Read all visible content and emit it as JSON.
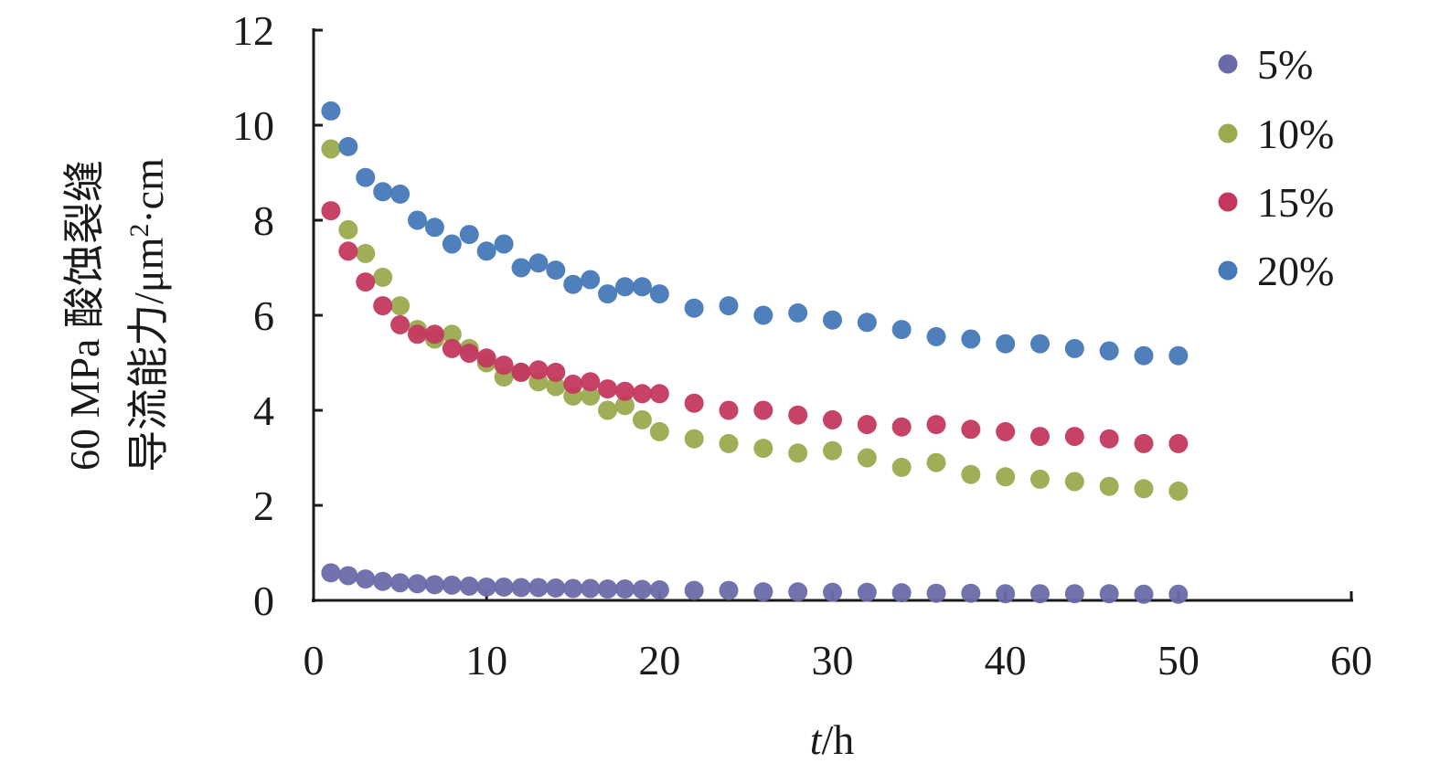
{
  "chart_data": {
    "type": "scatter",
    "xlabel_italic": "t",
    "xlabel_unit": "/h",
    "ylabel_line1": "60 MPa 酸蚀裂缝",
    "ylabel_line2_prefix": "导流能力/μm",
    "ylabel_line2_sup": "2",
    "ylabel_line2_suffix": "·cm",
    "xlim": [
      0,
      60
    ],
    "ylim": [
      0,
      12
    ],
    "xticks": [
      0,
      10,
      20,
      30,
      40,
      50,
      60
    ],
    "yticks": [
      0,
      2,
      4,
      6,
      8,
      10,
      12
    ],
    "x_tick_labels": [
      "0",
      "10",
      "20",
      "30",
      "40",
      "50",
      "60"
    ],
    "y_tick_labels": [
      "0",
      "2",
      "4",
      "6",
      "8",
      "10",
      "12"
    ],
    "grid": false,
    "legend_position": "top-right",
    "series": [
      {
        "name": "5%",
        "color": "#6a6aa8",
        "x": [
          1,
          2,
          3,
          4,
          5,
          6,
          7,
          8,
          9,
          10,
          11,
          12,
          13,
          14,
          15,
          16,
          17,
          18,
          19,
          20,
          22,
          24,
          26,
          28,
          30,
          32,
          34,
          36,
          38,
          40,
          42,
          44,
          46,
          48,
          50
        ],
        "y": [
          0.58,
          0.52,
          0.45,
          0.4,
          0.37,
          0.35,
          0.33,
          0.32,
          0.3,
          0.28,
          0.28,
          0.27,
          0.27,
          0.26,
          0.25,
          0.25,
          0.24,
          0.24,
          0.23,
          0.22,
          0.21,
          0.21,
          0.18,
          0.18,
          0.17,
          0.17,
          0.16,
          0.15,
          0.15,
          0.14,
          0.14,
          0.14,
          0.14,
          0.13,
          0.13
        ]
      },
      {
        "name": "10%",
        "color": "#9aaa4e",
        "x": [
          1,
          2,
          3,
          4,
          5,
          6,
          7,
          8,
          9,
          10,
          11,
          12,
          13,
          14,
          15,
          16,
          17,
          18,
          19,
          20,
          22,
          24,
          26,
          28,
          30,
          32,
          34,
          36,
          38,
          40,
          42,
          44,
          46,
          48,
          50
        ],
        "y": [
          9.5,
          7.8,
          7.3,
          6.8,
          6.2,
          5.7,
          5.5,
          5.6,
          5.3,
          5.0,
          4.7,
          4.8,
          4.6,
          4.5,
          4.3,
          4.3,
          4.0,
          4.1,
          3.8,
          3.55,
          3.4,
          3.3,
          3.2,
          3.1,
          3.15,
          3.0,
          2.8,
          2.9,
          2.65,
          2.6,
          2.55,
          2.5,
          2.4,
          2.35,
          2.3
        ]
      },
      {
        "name": "15%",
        "color": "#c4385f",
        "x": [
          1,
          2,
          3,
          4,
          5,
          6,
          7,
          8,
          9,
          10,
          11,
          12,
          13,
          14,
          15,
          16,
          17,
          18,
          19,
          20,
          22,
          24,
          26,
          28,
          30,
          32,
          34,
          36,
          38,
          40,
          42,
          44,
          46,
          48,
          50
        ],
        "y": [
          8.2,
          7.35,
          6.7,
          6.2,
          5.8,
          5.6,
          5.6,
          5.3,
          5.2,
          5.1,
          4.95,
          4.8,
          4.85,
          4.8,
          4.55,
          4.6,
          4.45,
          4.4,
          4.35,
          4.35,
          4.15,
          4.0,
          4.0,
          3.9,
          3.8,
          3.7,
          3.65,
          3.7,
          3.6,
          3.55,
          3.45,
          3.45,
          3.4,
          3.3,
          3.3
        ]
      },
      {
        "name": "20%",
        "color": "#4779b8",
        "x": [
          1,
          2,
          3,
          4,
          5,
          6,
          7,
          8,
          9,
          10,
          11,
          12,
          13,
          14,
          15,
          16,
          17,
          18,
          19,
          20,
          22,
          24,
          26,
          28,
          30,
          32,
          34,
          36,
          38,
          40,
          42,
          44,
          46,
          48,
          50
        ],
        "y": [
          10.3,
          9.55,
          8.9,
          8.6,
          8.55,
          8.0,
          7.85,
          7.5,
          7.7,
          7.35,
          7.5,
          7.0,
          7.1,
          6.95,
          6.65,
          6.75,
          6.45,
          6.6,
          6.6,
          6.45,
          6.15,
          6.2,
          6.0,
          6.05,
          5.9,
          5.85,
          5.7,
          5.55,
          5.5,
          5.4,
          5.4,
          5.3,
          5.25,
          5.15,
          5.15
        ]
      }
    ]
  }
}
